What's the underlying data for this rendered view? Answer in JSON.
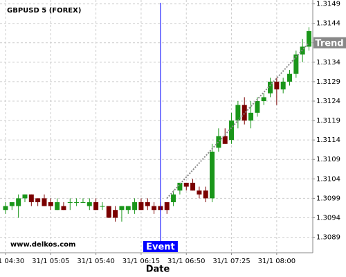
{
  "chart_data": {
    "type": "candlestick",
    "title": "GBPUSD 5 (FOREX)",
    "watermark": "www.delkos.com",
    "x_label": "Date",
    "categories": [
      "31/1 04:30",
      null,
      null,
      null,
      null,
      null,
      null,
      "31/1 05:05",
      null,
      null,
      null,
      null,
      null,
      null,
      "31/1 05:40",
      null,
      null,
      null,
      null,
      null,
      null,
      "31/1 06:15",
      null,
      null,
      null,
      null,
      null,
      null,
      "31/1 06:50",
      null,
      null,
      null,
      null,
      null,
      null,
      "31/1 07:25",
      null,
      null,
      null,
      null,
      null,
      null,
      "31/1 08:00",
      null,
      null,
      null,
      null,
      null
    ],
    "open": [
      1.3096,
      1.3097,
      1.3097,
      1.3099,
      1.31,
      1.3099,
      1.3099,
      1.3098,
      1.3096,
      1.3097,
      1.3098,
      1.3098,
      1.3098,
      1.3097,
      1.3098,
      1.3097,
      1.3097,
      1.3096,
      1.3096,
      1.3096,
      1.3096,
      1.3098,
      1.3098,
      1.3097,
      1.3097,
      1.3098,
      1.3098,
      1.3101,
      1.3103,
      1.3103,
      1.3101,
      1.3101,
      1.3099,
      1.3112,
      1.3115,
      1.3114,
      1.3119,
      1.3123,
      1.3119,
      1.3121,
      1.3124,
      1.3126,
      1.3129,
      1.3127,
      1.3129,
      1.3131,
      1.3136,
      1.3138
    ],
    "high": [
      1.3098,
      1.3098,
      1.31,
      1.31,
      1.31,
      1.3099,
      1.31,
      1.3099,
      1.3099,
      1.3098,
      1.3099,
      1.3099,
      1.3099,
      1.3099,
      1.3099,
      1.3098,
      1.3097,
      1.3097,
      1.3097,
      1.3097,
      1.3099,
      1.3099,
      1.3099,
      1.3098,
      1.3098,
      1.3098,
      1.3101,
      1.3103,
      1.3103,
      1.3104,
      1.3102,
      1.3102,
      1.3113,
      1.3117,
      1.3117,
      1.3121,
      1.3124,
      1.3125,
      1.3124,
      1.3125,
      1.3126,
      1.313,
      1.313,
      1.313,
      1.3132,
      1.3137,
      1.314,
      1.3143
    ],
    "low": [
      1.3095,
      1.3096,
      1.3094,
      1.3098,
      1.3097,
      1.3097,
      1.3097,
      1.3096,
      1.3096,
      1.3096,
      1.3096,
      1.3097,
      1.3098,
      1.3096,
      1.3096,
      1.3096,
      1.3094,
      1.3093,
      1.3093,
      1.3095,
      1.3095,
      1.3096,
      1.3096,
      1.3095,
      1.3096,
      1.3095,
      1.3097,
      1.31,
      1.3101,
      1.3101,
      1.3099,
      1.3098,
      1.3098,
      1.3111,
      1.3113,
      1.3113,
      1.3117,
      1.3118,
      1.3117,
      1.312,
      1.3123,
      1.3125,
      1.3123,
      1.3126,
      1.3128,
      1.313,
      1.3134,
      1.3137
    ],
    "close": [
      1.3097,
      1.3098,
      1.3099,
      1.31,
      1.3098,
      1.3098,
      1.3097,
      1.3097,
      1.3098,
      1.3096,
      1.3098,
      1.3098,
      1.3098,
      1.3098,
      1.3096,
      1.3097,
      1.3094,
      1.3094,
      1.3097,
      1.3097,
      1.3098,
      1.3096,
      1.3097,
      1.3096,
      1.3096,
      1.3096,
      1.31,
      1.3103,
      1.3102,
      1.3101,
      1.31,
      1.3099,
      1.3111,
      1.3115,
      1.3113,
      1.3119,
      1.3123,
      1.3119,
      1.3121,
      1.3124,
      1.3125,
      1.3129,
      1.3127,
      1.3129,
      1.3131,
      1.3136,
      1.3138,
      1.3142
    ],
    "up_color": "#1a961a",
    "down_color": "#7a0000",
    "ylim": [
      1.3085,
      1.315
    ],
    "yticks": [
      1.3089,
      1.3094,
      1.3099,
      1.3104,
      1.3109,
      1.3114,
      1.3119,
      1.3124,
      1.3129,
      1.3134,
      1.3139,
      1.3144,
      1.3149
    ],
    "grid": true,
    "event": {
      "label": "Event",
      "index": 24,
      "color": "#0000ff"
    },
    "trend": {
      "label": "Trend",
      "from_index": 25,
      "from_value": 1.3099,
      "to_index": 47,
      "to_value": 1.3139,
      "color": "#888888"
    }
  }
}
